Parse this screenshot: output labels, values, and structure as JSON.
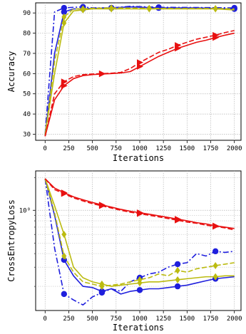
{
  "chart_data": [
    {
      "type": "line",
      "xlabel": "Iterations",
      "ylabel": "Accuracy",
      "x_ticks": [
        "0",
        "250",
        "500",
        "750",
        "1000",
        "1250",
        "1500",
        "1750",
        "2000"
      ],
      "y_ticks": [
        "30",
        "40",
        "50",
        "60",
        "70",
        "80",
        "90"
      ],
      "xlim": [
        -100,
        2070
      ],
      "ylim": [
        27,
        95
      ],
      "grid": true,
      "series": [
        {
          "color": "#1f1fdd",
          "dash": "solid",
          "marker": "circle",
          "x": [
            0,
            100,
            200,
            300,
            400,
            500,
            700,
            900,
            1200,
            1600,
            2000
          ],
          "y": [
            29,
            70,
            90.5,
            92,
            92,
            92.3,
            92.5,
            93,
            92.5,
            92.5,
            92
          ]
        },
        {
          "color": "#1f1fdd",
          "dash": "dashdot",
          "marker": "circle",
          "x": [
            0,
            100,
            200,
            300,
            400,
            500,
            700,
            900,
            1200,
            1600,
            2000
          ],
          "y": [
            30,
            90.5,
            92.5,
            92.8,
            93,
            92.5,
            92.5,
            93.3,
            92.8,
            92.7,
            92.5
          ]
        },
        {
          "color": "#bbbb10",
          "dash": "solid",
          "marker": "diamond",
          "x": [
            0,
            100,
            200,
            300,
            400,
            500,
            700,
            900,
            1100,
            1400,
            1800,
            2000
          ],
          "y": [
            30,
            60,
            85,
            91,
            91.5,
            92,
            92,
            92,
            92,
            92,
            92,
            91.5
          ]
        },
        {
          "color": "#bbbb10",
          "dash": "dashed",
          "marker": "diamond",
          "x": [
            0,
            100,
            200,
            300,
            400,
            500,
            700,
            900,
            1100,
            1400,
            1800,
            2000
          ],
          "y": [
            29,
            66,
            88,
            92,
            92,
            92.3,
            92.5,
            92.4,
            92.3,
            92.2,
            92.2,
            92
          ]
        },
        {
          "color": "#e81010",
          "dash": "solid",
          "marker": "triangle-right",
          "x": [
            0,
            100,
            200,
            300,
            400,
            500,
            600,
            700,
            800,
            900,
            1000,
            1100,
            1200,
            1300,
            1400,
            1500,
            1600,
            1700,
            1800,
            1900,
            2000
          ],
          "y": [
            29,
            47,
            54,
            57.5,
            59,
            59.5,
            59.8,
            60,
            60.3,
            61,
            63.5,
            66,
            68.5,
            70.5,
            72.5,
            74,
            75.5,
            76.5,
            77.8,
            79,
            80
          ]
        },
        {
          "color": "#e81010",
          "dash": "dashed",
          "marker": "triangle-right",
          "x": [
            0,
            100,
            200,
            300,
            400,
            500,
            600,
            700,
            800,
            900,
            1000,
            1100,
            1200,
            1300,
            1400,
            1500,
            1600,
            1700,
            1800,
            1900,
            2000
          ],
          "y": [
            29,
            50,
            56,
            58.5,
            59.5,
            59.8,
            60,
            60.2,
            60.6,
            62.5,
            65.5,
            68,
            70.5,
            72,
            74,
            75.5,
            77,
            78,
            79,
            80.3,
            81.3
          ]
        }
      ]
    },
    {
      "type": "line",
      "xlabel": "Iterations",
      "ylabel": "CrossEntropyLoss",
      "x_ticks": [
        "0",
        "250",
        "500",
        "750",
        "1000",
        "1250",
        "1500",
        "1750",
        "2000"
      ],
      "y_ticks": [
        "10⁰"
      ],
      "xlim": [
        -100,
        2070
      ],
      "ylim": [
        0.12,
        2.3
      ],
      "yscale": "log",
      "grid": true,
      "series": [
        {
          "color": "#1f1fdd",
          "dash": "solid",
          "marker": "circle",
          "x": [
            0,
            100,
            200,
            300,
            400,
            500,
            600,
            700,
            800,
            900,
            1000,
            1100,
            1200,
            1300,
            1400,
            1500,
            1600,
            1700,
            1800,
            1900,
            2000
          ],
          "y": [
            1.95,
            0.9,
            0.35,
            0.25,
            0.2,
            0.195,
            0.18,
            0.19,
            0.17,
            0.18,
            0.185,
            0.19,
            0.19,
            0.195,
            0.2,
            0.205,
            0.215,
            0.225,
            0.235,
            0.24,
            0.245
          ]
        },
        {
          "color": "#1f1fdd",
          "dash": "dashdot",
          "marker": "circle",
          "x": [
            0,
            100,
            200,
            300,
            400,
            500,
            600,
            700,
            800,
            900,
            1000,
            1100,
            1200,
            1300,
            1400,
            1500,
            1600,
            1700,
            1800,
            1900,
            2000
          ],
          "y": [
            1.95,
            0.45,
            0.17,
            0.15,
            0.135,
            0.16,
            0.175,
            0.19,
            0.18,
            0.22,
            0.24,
            0.26,
            0.27,
            0.3,
            0.32,
            0.33,
            0.4,
            0.38,
            0.42,
            0.41,
            0.42
          ]
        },
        {
          "color": "#bbbb10",
          "dash": "solid",
          "marker": "diamond",
          "x": [
            0,
            100,
            200,
            300,
            400,
            500,
            600,
            700,
            800,
            900,
            1000,
            1100,
            1200,
            1300,
            1400,
            1500,
            1600,
            1700,
            1800,
            1900,
            2000
          ],
          "y": [
            1.95,
            1.1,
            0.6,
            0.3,
            0.24,
            0.22,
            0.21,
            0.2,
            0.205,
            0.21,
            0.215,
            0.22,
            0.22,
            0.225,
            0.23,
            0.235,
            0.24,
            0.245,
            0.245,
            0.25,
            0.25
          ]
        },
        {
          "color": "#bbbb10",
          "dash": "dashed",
          "marker": "diamond",
          "x": [
            0,
            100,
            200,
            300,
            400,
            500,
            600,
            700,
            800,
            900,
            1000,
            1100,
            1200,
            1300,
            1400,
            1500,
            1600,
            1700,
            1800,
            1900,
            2000
          ],
          "y": [
            1.95,
            0.95,
            0.38,
            0.27,
            0.22,
            0.21,
            0.2,
            0.205,
            0.21,
            0.22,
            0.23,
            0.24,
            0.26,
            0.25,
            0.28,
            0.27,
            0.29,
            0.3,
            0.31,
            0.32,
            0.33
          ]
        },
        {
          "color": "#e81010",
          "dash": "solid",
          "marker": "triangle-right",
          "x": [
            0,
            100,
            200,
            300,
            400,
            500,
            600,
            700,
            800,
            900,
            1000,
            1100,
            1200,
            1300,
            1400,
            1500,
            1600,
            1700,
            1800,
            1900,
            2000
          ],
          "y": [
            1.95,
            1.6,
            1.45,
            1.33,
            1.25,
            1.18,
            1.12,
            1.07,
            1.02,
            0.98,
            0.95,
            0.92,
            0.89,
            0.86,
            0.83,
            0.8,
            0.77,
            0.75,
            0.72,
            0.7,
            0.68
          ]
        },
        {
          "color": "#e81010",
          "dash": "dashed",
          "marker": "triangle-right",
          "x": [
            0,
            100,
            200,
            300,
            400,
            500,
            600,
            700,
            800,
            900,
            1000,
            1100,
            1200,
            1300,
            1400,
            1500,
            1600,
            1700,
            1800,
            1900,
            2000
          ],
          "y": [
            1.95,
            1.55,
            1.42,
            1.3,
            1.22,
            1.15,
            1.1,
            1.05,
            1.0,
            0.96,
            0.93,
            0.9,
            0.87,
            0.84,
            0.81,
            0.78,
            0.76,
            0.73,
            0.71,
            0.69,
            0.66
          ]
        }
      ]
    }
  ]
}
